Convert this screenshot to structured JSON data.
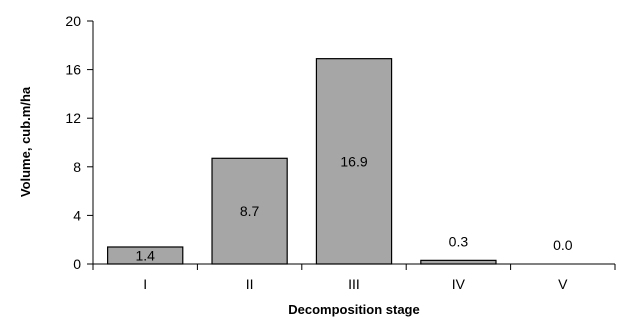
{
  "chart_data": {
    "type": "bar",
    "title": "",
    "xlabel": "Decomposition stage",
    "ylabel": "Volume, cub.m/ha",
    "categories": [
      "I",
      "II",
      "III",
      "IV",
      "V"
    ],
    "values": [
      1.4,
      8.7,
      16.9,
      0.3,
      0.0
    ],
    "data_labels": [
      "1.4",
      "8.7",
      "16.9",
      "0.3",
      "0.0"
    ],
    "ylim": [
      0,
      20
    ],
    "yticks": [
      0,
      4,
      8,
      12,
      16,
      20
    ],
    "grid": false,
    "legend": "none",
    "colors": {
      "bar_fill": "#a6a6a6",
      "bar_stroke": "#000000"
    }
  }
}
